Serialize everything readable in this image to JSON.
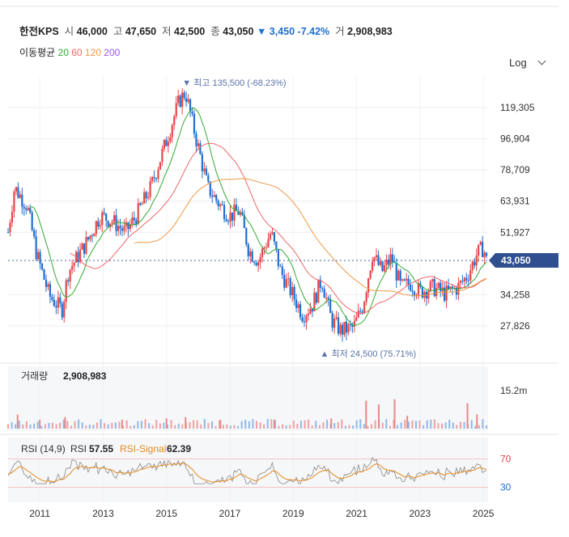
{
  "header": {
    "name": "한전KPS",
    "open_label": "시",
    "open": "46,000",
    "high_label": "고",
    "high": "47,650",
    "low_label": "저",
    "low": "42,500",
    "close_label": "종",
    "close": "43,050",
    "change": "▼ 3,450 -7.42%",
    "volume_label": "거",
    "volume": "2,908,983"
  },
  "ma_legend": {
    "label": "이동평균",
    "items": [
      "20",
      "60",
      "120",
      "200"
    ]
  },
  "scale_button": "Log",
  "colors": {
    "up": "#e4474a",
    "down": "#1f6fd0",
    "ma20": "#33aa33",
    "ma60": "#ee6666",
    "ma120": "#ee9944",
    "ma200": "#9955ee",
    "current": "#2f4f8f"
  },
  "chart_data": {
    "type": "candlestick",
    "scale": "log",
    "x_ticks": [
      "2011",
      "2013",
      "2015",
      "2017",
      "2019",
      "2021",
      "2023",
      "2025"
    ],
    "y_ticks": [
      "119,305",
      "96,904",
      "78,709",
      "63,931",
      "51,927",
      "34,258",
      "27,826"
    ],
    "current_price": "43,050",
    "max_annotation": "▼ 최고 135,500 (-68.23%)",
    "min_annotation": "▲ 최저 24,500 (75.71%)",
    "price_path": [
      [
        "2010.0",
        52000
      ],
      [
        "2010.2",
        70000
      ],
      [
        "2010.6",
        62000
      ],
      [
        "2010.9",
        45000
      ],
      [
        "2011.3",
        34000
      ],
      [
        "2011.7",
        31000
      ],
      [
        "2011.9",
        40000
      ],
      [
        "2012.5",
        49000
      ],
      [
        "2012.9",
        58000
      ],
      [
        "2013.3",
        56000
      ],
      [
        "2013.7",
        52000
      ],
      [
        "2014.0",
        57000
      ],
      [
        "2014.5",
        70000
      ],
      [
        "2015.0",
        96000
      ],
      [
        "2015.4",
        125000
      ],
      [
        "2015.6",
        132000
      ],
      [
        "2015.9",
        100000
      ],
      [
        "2016.3",
        70000
      ],
      [
        "2016.7",
        62000
      ],
      [
        "2017.0",
        58000
      ],
      [
        "2017.3",
        60000
      ],
      [
        "2017.6",
        46000
      ],
      [
        "2017.9",
        43000
      ],
      [
        "2018.3",
        52000
      ],
      [
        "2018.6",
        40000
      ],
      [
        "2019.0",
        34000
      ],
      [
        "2019.3",
        30000
      ],
      [
        "2019.6",
        32000
      ],
      [
        "2019.9",
        38000
      ],
      [
        "2020.2",
        29000
      ],
      [
        "2020.5",
        27000
      ],
      [
        "2020.9",
        27500
      ],
      [
        "2021.2",
        32000
      ],
      [
        "2021.5",
        45000
      ],
      [
        "2021.8",
        40000
      ],
      [
        "2022.1",
        44000
      ],
      [
        "2022.4",
        36000
      ],
      [
        "2022.7",
        37000
      ],
      [
        "2023.0",
        35000
      ],
      [
        "2023.4",
        36000
      ],
      [
        "2023.8",
        34500
      ],
      [
        "2024.2",
        36000
      ],
      [
        "2024.5",
        39000
      ],
      [
        "2024.8",
        45000
      ],
      [
        "2025.0",
        47000
      ],
      [
        "2025.1",
        43050
      ]
    ],
    "volume": {
      "label": "거래량",
      "value": "2,908,983",
      "y_tick": "15.2m",
      "bars": [
        {
          "x": "2010.3",
          "value": 5.5
        },
        {
          "x": "2011.0",
          "value": 3.5
        },
        {
          "x": "2011.8",
          "value": 4.5
        },
        {
          "x": "2013.6",
          "value": 3.5
        },
        {
          "x": "2015.0",
          "value": 4
        },
        {
          "x": "2015.6",
          "value": 4.5
        },
        {
          "x": "2016.7",
          "value": 3.5
        },
        {
          "x": "2018.4",
          "value": 3.5
        },
        {
          "x": "2020.2",
          "value": 4
        },
        {
          "x": "2021.3",
          "value": 11
        },
        {
          "x": "2021.7",
          "value": 9.5
        },
        {
          "x": "2022.2",
          "value": 11.5
        },
        {
          "x": "2022.6",
          "value": 5
        },
        {
          "x": "2024.5",
          "value": 10
        },
        {
          "x": "2024.8",
          "value": 5.5
        }
      ]
    },
    "rsi": {
      "label": "RSI (14,9)",
      "rsi_label": "RSI",
      "rsi_value": "57.55",
      "signal_label": "RSI-Signal",
      "signal_value": "62.39",
      "levels": [
        "70",
        "30"
      ]
    }
  }
}
